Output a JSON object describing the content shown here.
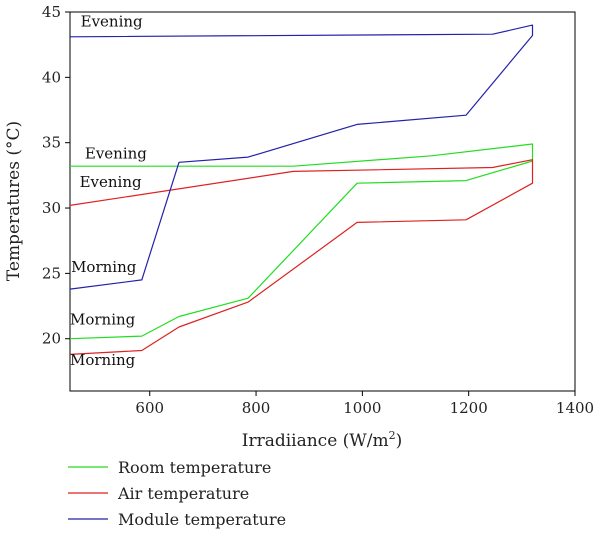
{
  "chart_data": {
    "type": "line",
    "title": "",
    "xlabel": "Irradiiance (W/m",
    "xlabel_sup": "2",
    "xlabel_tail": ")",
    "ylabel": "Temperatures (°C)",
    "xlim": [
      450,
      1400
    ],
    "ylim": [
      16,
      45
    ],
    "xticks": [
      600,
      800,
      1000,
      1200,
      1400
    ],
    "yticks": [
      20,
      25,
      30,
      35,
      40,
      45
    ],
    "series": [
      {
        "name": "Room temperature",
        "color": "#22dd22",
        "x": [
          450,
          585,
          655,
          785,
          990,
          1195,
          1320,
          1320,
          1130,
          870,
          450
        ],
        "y": [
          20.0,
          20.2,
          21.7,
          23.1,
          31.9,
          32.1,
          33.6,
          34.9,
          34.0,
          33.2,
          33.2
        ]
      },
      {
        "name": "Air temperature",
        "color": "#dd2222",
        "x": [
          450,
          585,
          655,
          785,
          990,
          1195,
          1320,
          1320,
          1245,
          870,
          450
        ],
        "y": [
          18.8,
          19.1,
          20.9,
          22.8,
          28.9,
          29.1,
          31.9,
          33.7,
          33.1,
          32.8,
          30.2
        ]
      },
      {
        "name": "Module temperature",
        "color": "#2222aa",
        "x": [
          450,
          585,
          655,
          785,
          990,
          1195,
          1320,
          1320,
          1245,
          450
        ],
        "y": [
          23.8,
          24.5,
          33.5,
          33.9,
          36.4,
          37.1,
          43.2,
          44.0,
          43.3,
          43.1
        ]
      }
    ],
    "annotations": [
      {
        "text": "Evening",
        "x": 470,
        "y": 43.9
      },
      {
        "text": "Evening",
        "x": 478,
        "y": 33.8
      },
      {
        "text": "Evening",
        "x": 468,
        "y": 31.6
      },
      {
        "text": "Morning",
        "x": 452,
        "y": 25.1
      },
      {
        "text": "Morning",
        "x": 450,
        "y": 21.1
      },
      {
        "text": "Morning",
        "x": 450,
        "y": 18.0
      }
    ],
    "legend": "bottom-left",
    "grid": false
  }
}
